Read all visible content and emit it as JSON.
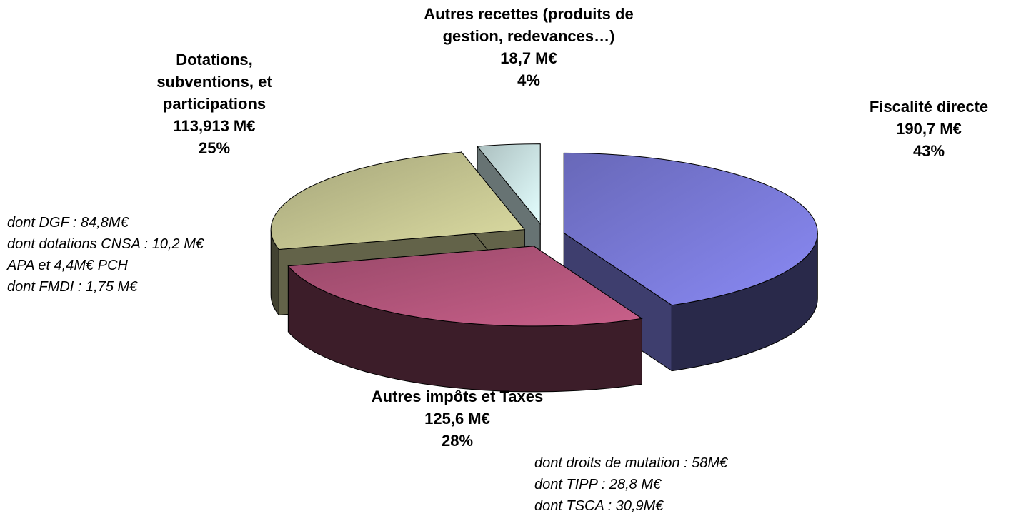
{
  "chart_data": {
    "type": "pie",
    "categories": [
      "Fiscalité directe",
      "Autres impôts et Taxes",
      "Dotations, subventions, et participations",
      "Autres recettes (produits de gestion, redevances…)"
    ],
    "values": [
      43,
      28,
      25,
      4
    ],
    "value_labels": [
      "43%",
      "28%",
      "25%",
      "4%"
    ],
    "amount_labels": [
      "190,7 M€",
      "125,6 M€",
      "113,913 M€",
      "18,7 M€"
    ],
    "colors": [
      "#8a8af5",
      "#c9608a",
      "#dcdca2",
      "#e4ffff"
    ],
    "start_angle": -90,
    "annotations": [
      {
        "slice": 2,
        "lines": [
          "dont DGF : 84,8M€",
          "dont dotations CNSA : 10,2 M€ APA et 4,4M€ PCH",
          "dont FMDI : 1,75 M€"
        ]
      },
      {
        "slice": 1,
        "lines": [
          "dont droits de mutation : 58M€",
          "dont TIPP : 28,8 M€",
          "dont TSCA : 30,9M€"
        ]
      }
    ]
  }
}
